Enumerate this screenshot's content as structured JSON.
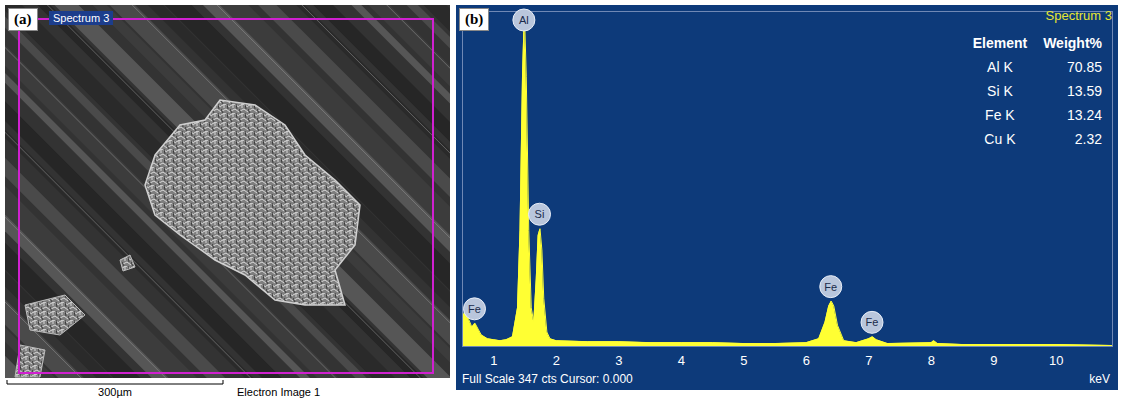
{
  "image_panel": {
    "panel_label": "(a)",
    "region_label": "Spectrum 3",
    "scale_bar": "300µm",
    "caption": "Electron Image 1"
  },
  "chart_data": {
    "type": "area",
    "panel_label": "(b)",
    "title": "Spectrum 3",
    "xlabel": "keV",
    "footer": "Full Scale 347 cts Cursor: 0.000",
    "x": [
      0.5,
      0.55,
      0.6,
      0.65,
      0.7,
      0.75,
      0.8,
      0.9,
      1.0,
      1.1,
      1.2,
      1.3,
      1.38,
      1.42,
      1.46,
      1.49,
      1.52,
      1.56,
      1.6,
      1.64,
      1.68,
      1.71,
      1.74,
      1.77,
      1.8,
      1.85,
      1.9,
      2.0,
      2.5,
      3.0,
      3.5,
      4.0,
      4.5,
      5.0,
      5.5,
      6.0,
      6.2,
      6.3,
      6.36,
      6.4,
      6.44,
      6.5,
      6.6,
      6.8,
      7.0,
      7.06,
      7.12,
      7.3,
      8.0,
      8.04,
      8.1,
      8.5,
      9.0,
      10.0,
      10.9
    ],
    "values": [
      30,
      38,
      28,
      20,
      24,
      18,
      12,
      8,
      7,
      6,
      7,
      10,
      40,
      120,
      280,
      347,
      280,
      120,
      40,
      25,
      70,
      115,
      122,
      100,
      50,
      15,
      8,
      6,
      5,
      5,
      4,
      4,
      4,
      3,
      3,
      4,
      8,
      25,
      42,
      47,
      42,
      22,
      6,
      4,
      8,
      10,
      7,
      3,
      4,
      6,
      3,
      2,
      2,
      2,
      1
    ],
    "color": "#ffff33",
    "xlim": [
      0.5,
      10.9
    ],
    "xticks": [
      1,
      2,
      3,
      4,
      5,
      6,
      7,
      8,
      9,
      10
    ],
    "ylim": [
      0,
      347
    ],
    "tick_labels": "x",
    "grid": false,
    "annotations": [
      {
        "text": "Fe",
        "x": 0.7
      },
      {
        "text": "Al",
        "x": 1.49
      },
      {
        "text": "Si",
        "x": 1.74
      },
      {
        "text": "Fe",
        "x": 6.4
      },
      {
        "text": "Fe",
        "x": 7.06
      }
    ],
    "table": {
      "columns": [
        "Element",
        "Weight%"
      ],
      "rows": [
        [
          "Al K",
          70.85
        ],
        [
          "Si K",
          13.59
        ],
        [
          "Fe K",
          13.24
        ],
        [
          "Cu K",
          2.32
        ]
      ]
    }
  }
}
